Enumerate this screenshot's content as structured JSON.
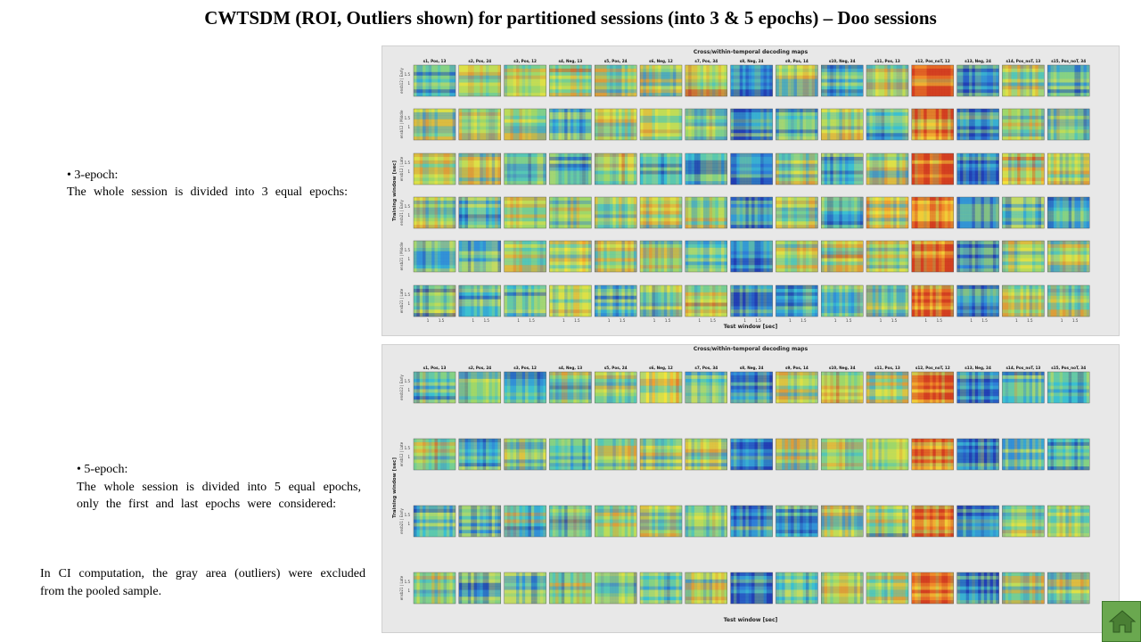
{
  "slide": {
    "title": "CWTSDM (ROI, Outliers shown) for partitioned sessions (into 3 & 5 epochs) – Doo sessions",
    "bullet1_head": "• 3-epoch:",
    "bullet1_body": "The whole session is divided into 3 equal epochs:",
    "bullet2_head": "• 5-epoch:",
    "bullet2_line1": "The whole session is divided into 5 equal epochs,",
    "bullet2_line2": "only the first and last epochs were considered:",
    "note_line1": "In CI computation, the gray area (outliers) were excluded",
    "note_line2": "from the pooled sample."
  },
  "home_button": {
    "icon": "home-icon",
    "color": "#6aa84f"
  },
  "chart_data": [
    {
      "type": "heatmap",
      "title": "Cross/within-temporal decoding maps",
      "xlabel": "Test window [sec]",
      "ylabel": "Training window [sec]",
      "columns": [
        "s1, Pos, 13",
        "s2, Pos, 24",
        "s3, Pos, 12",
        "s4, Neg, 13",
        "s5, Pos, 24",
        "s6, Neg, 12",
        "s7, Pos, 34",
        "s8, Neg, 24",
        "s9, Pos, 14",
        "s10, Neg, 34",
        "s11, Pos, 13",
        "s12, Pos_noT, 12",
        "s13, Neg, 24",
        "s14, Pos_noT, 13",
        "s15, Pos_noT, 34"
      ],
      "rows": [
        "ensb12 | Early",
        "ensb12 | Middle",
        "ensb12 | Late",
        "ensb21 | Early",
        "ensb21 | Middle",
        "ensb21 | Late"
      ],
      "yticks": [
        "1.5",
        "1"
      ],
      "xticks": [
        "1",
        "1.5"
      ],
      "colormap": [
        "#1f2aa8",
        "#2f7fd8",
        "#3cc0d0",
        "#9fd86a",
        "#f2e33c",
        "#f08a2a",
        "#c8261e"
      ]
    },
    {
      "type": "heatmap",
      "title": "Cross/within-temporal decoding maps",
      "xlabel": "Test window [sec]",
      "ylabel": "Training window [sec]",
      "columns": [
        "s1, Pos, 13",
        "s2, Pos, 24",
        "s3, Pos, 12",
        "s4, Neg, 13",
        "s5, Pos, 24",
        "s6, Neg, 12",
        "s7, Pos, 34",
        "s8, Neg, 24",
        "s9, Pos, 14",
        "s10, Neg, 34",
        "s11, Pos, 13",
        "s12, Pos_noT, 12",
        "s13, Neg, 24",
        "s14, Pos_noT, 13",
        "s15, Pos_noT, 34"
      ],
      "rows": [
        "ensb12 | Early",
        "ensb12 | Late",
        "ensb21 | Early",
        "ensb21 | Late"
      ],
      "yticks": [
        "1.5",
        "1"
      ],
      "xticks": [],
      "colormap": [
        "#1f2aa8",
        "#2f7fd8",
        "#3cc0d0",
        "#9fd86a",
        "#f2e33c",
        "#f08a2a",
        "#c8261e"
      ]
    }
  ]
}
